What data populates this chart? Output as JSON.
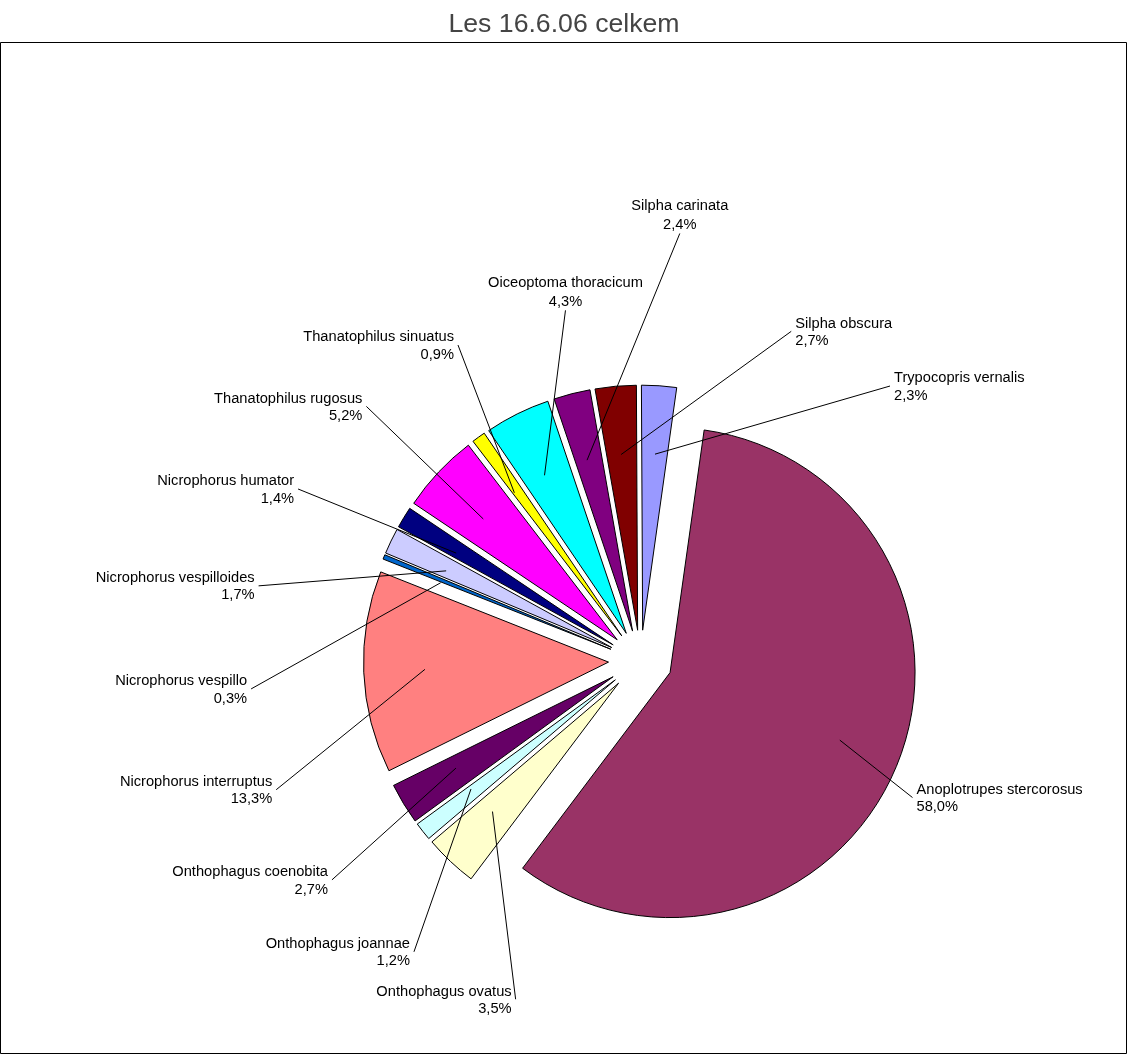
{
  "chart_data": {
    "type": "pie",
    "title": "Les 16.6.06 celkem",
    "categories": [
      "Anoplotrupes stercorosus",
      "Onthophagus ovatus",
      "Onthophagus joannae",
      "Onthophagus coenobita",
      "Nicrophorus interruptus",
      "Nicrophorus vespillo",
      "Nicrophorus vespilloides",
      "Nicrophorus humator",
      "Thanatophilus rugosus",
      "Thanatophilus sinuatus",
      "Oiceoptoma thoracicum",
      "Silpha carinata",
      "Silpha obscura",
      "Trypocopris vernalis"
    ],
    "values": [
      58.0,
      3.5,
      1.2,
      2.7,
      13.3,
      0.3,
      1.7,
      1.4,
      5.2,
      0.9,
      4.3,
      2.4,
      2.7,
      2.3
    ],
    "value_labels": [
      "58,0%",
      "3,5%",
      "1,2%",
      "2,7%",
      "13,3%",
      "0,3%",
      "1,7%",
      "1,4%",
      "5,2%",
      "0,9%",
      "4,3%",
      "2,4%",
      "2,7%",
      "2,3%"
    ],
    "colors": [
      "#993366",
      "#ffffcc",
      "#ccffff",
      "#660066",
      "#ff8080",
      "#0066cc",
      "#ccccff",
      "#000080",
      "#ff00ff",
      "#ffff00",
      "#00ffff",
      "#800080",
      "#800000",
      "#9999ff"
    ]
  }
}
